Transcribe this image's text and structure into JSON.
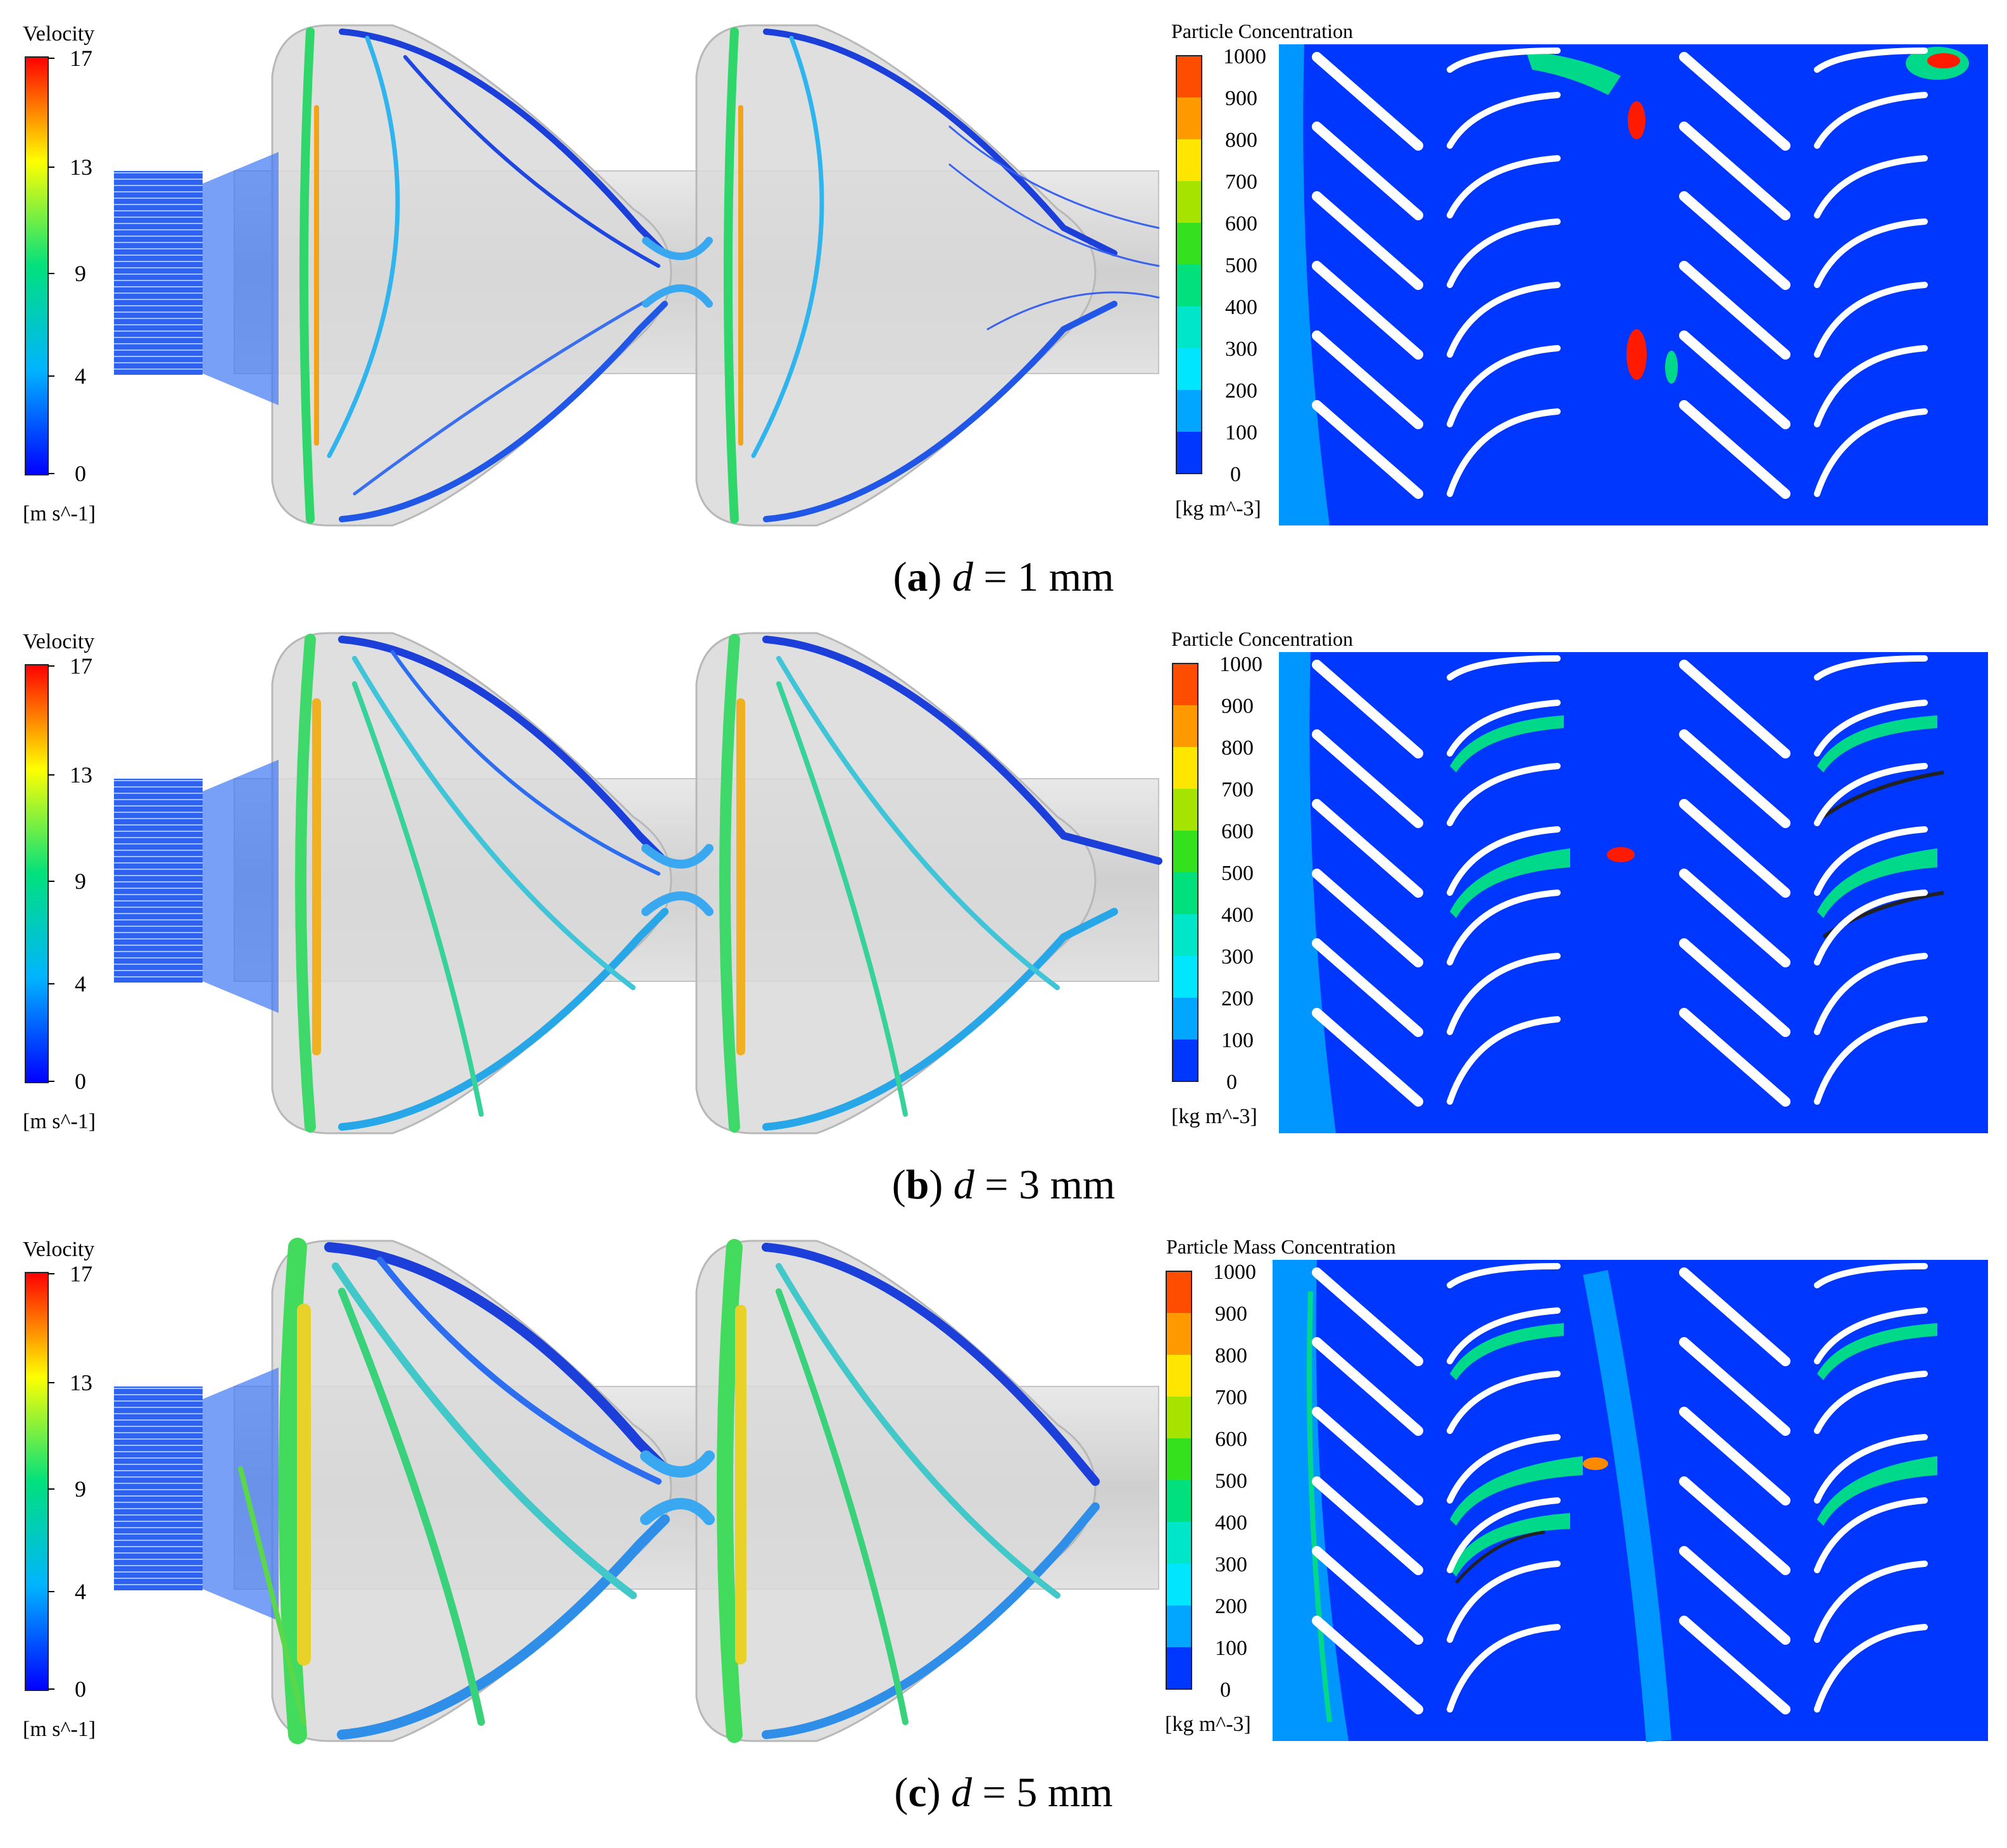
{
  "colors": {
    "scale": [
      "#0000ff",
      "#0066ff",
      "#00b4ff",
      "#00e6e6",
      "#00e17d",
      "#35e01c",
      "#a6e400",
      "#ffff00",
      "#ffcc00",
      "#ff9900",
      "#ff5500",
      "#ff0000"
    ],
    "contour_background": "#0037ff",
    "blade": "#ffffff",
    "housing": "#d8d8d8"
  },
  "panels": [
    {
      "label": "a",
      "d_symbol": "d",
      "d_value": "= 1 mm",
      "velocity": {
        "title": "Velocity",
        "max": "17",
        "ticks": [
          "17",
          "13",
          "9",
          "4",
          "0"
        ],
        "unit": "[m s^-1]"
      },
      "concentration": {
        "title": "Particle Concentration",
        "ticks": [
          "1000",
          "900",
          "800",
          "700",
          "600",
          "500",
          "400",
          "300",
          "200",
          "100",
          "0"
        ],
        "unit": "[kg m^-3]"
      }
    },
    {
      "label": "b",
      "d_symbol": "d",
      "d_value": "= 3 mm",
      "velocity": {
        "title": "Velocity",
        "max": "17",
        "ticks": [
          "17",
          "13",
          "9",
          "4",
          "0"
        ],
        "unit": "[m s^-1]"
      },
      "concentration": {
        "title": "Particle Concentration",
        "ticks": [
          "1000",
          "900",
          "800",
          "700",
          "600",
          "500",
          "400",
          "300",
          "200",
          "100",
          "0"
        ],
        "unit": "[kg m^-3]"
      }
    },
    {
      "label": "c",
      "d_symbol": "d",
      "d_value": "= 5 mm",
      "velocity": {
        "title": "Velocity",
        "max": "17",
        "ticks": [
          "17",
          "13",
          "9",
          "4",
          "0"
        ],
        "unit": "[m s^-1]"
      },
      "concentration": {
        "title": "Particle Mass Concentration",
        "ticks": [
          "1000",
          "900",
          "800",
          "700",
          "600",
          "500",
          "400",
          "300",
          "200",
          "100",
          "0"
        ],
        "unit": "[kg m^-3]"
      }
    }
  ]
}
